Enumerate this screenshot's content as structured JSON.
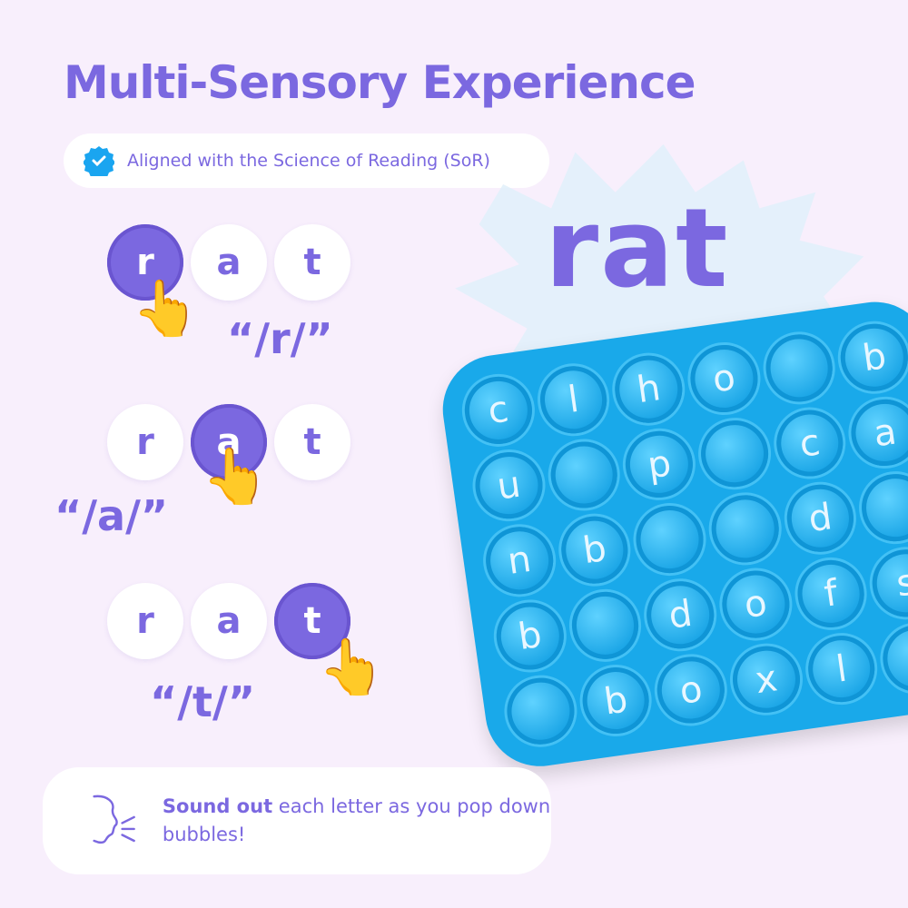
{
  "title": "Multi-Sensory Experience",
  "badge": {
    "icon": "verified-check-icon",
    "label": "Aligned with the Science of Reading (SoR)"
  },
  "rows": [
    {
      "letters": [
        "r",
        "a",
        "t"
      ],
      "active": 0,
      "phoneme": "“/r/”"
    },
    {
      "letters": [
        "r",
        "a",
        "t"
      ],
      "active": 1,
      "phoneme": "“/a/”"
    },
    {
      "letters": [
        "r",
        "a",
        "t"
      ],
      "active": 2,
      "phoneme": "“/t/”"
    }
  ],
  "splash": {
    "word": "rat"
  },
  "board": {
    "letters": [
      "c",
      "l",
      "h",
      "o",
      "",
      "b",
      "u",
      "",
      "p",
      "",
      "c",
      "a",
      "n",
      "b",
      "",
      "",
      "d",
      "",
      "b",
      "",
      "d",
      "o",
      "f",
      "s",
      "",
      "b",
      "o",
      "x",
      "l",
      ""
    ]
  },
  "footer": {
    "icon": "speaking-head-icon",
    "bold": "Sound out",
    "text": " each letter as you pop down bubbles!"
  },
  "colors": {
    "accent": "#7b68e0",
    "board": "#19a9ea",
    "badge": "#1aa5f0",
    "background": "#f8effc"
  }
}
